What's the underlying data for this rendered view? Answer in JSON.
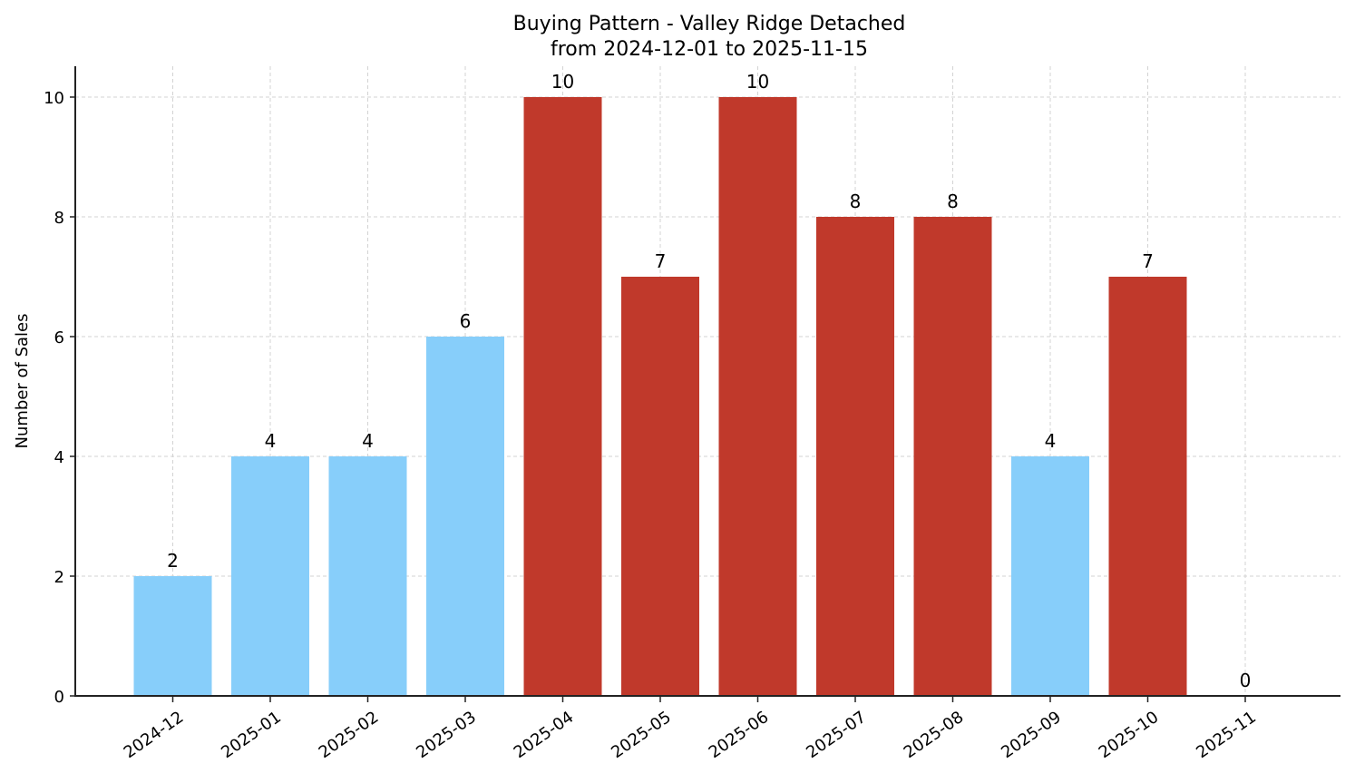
{
  "chart_data": {
    "type": "bar",
    "title": "Buying Pattern - Valley Ridge Detached",
    "subtitle": "from 2024-12-01 to 2025-11-15",
    "xlabel": "",
    "ylabel": "Number of Sales",
    "ylim": [
      0,
      10.5
    ],
    "yticks": [
      0,
      2,
      4,
      6,
      8,
      10
    ],
    "grid": true,
    "legend": null,
    "categories": [
      "2024-12",
      "2025-01",
      "2025-02",
      "2025-03",
      "2025-04",
      "2025-05",
      "2025-06",
      "2025-07",
      "2025-08",
      "2025-09",
      "2025-10",
      "2025-11"
    ],
    "values": [
      2,
      4,
      4,
      6,
      10,
      7,
      10,
      8,
      8,
      4,
      7,
      0
    ],
    "bar_colors": [
      "#87CEFA",
      "#87CEFA",
      "#87CEFA",
      "#87CEFA",
      "#C0392B",
      "#C0392B",
      "#C0392B",
      "#C0392B",
      "#C0392B",
      "#87CEFA",
      "#C0392B",
      "#87CEFA"
    ]
  },
  "colors": {
    "low": "#87CEFA",
    "high": "#C0392B",
    "grid": "#d3d3d3",
    "axis": "#222222"
  }
}
